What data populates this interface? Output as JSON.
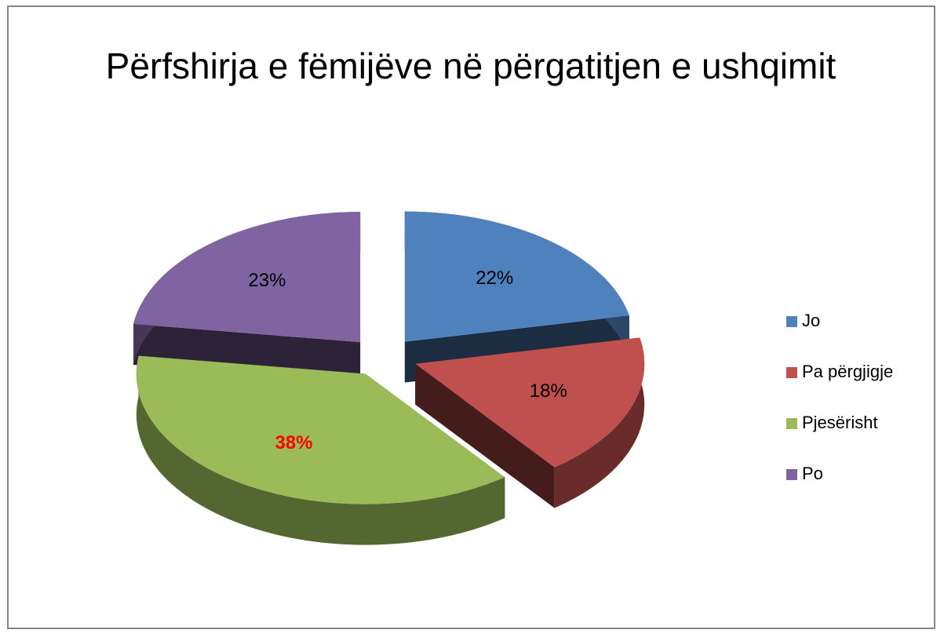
{
  "chart_data": {
    "type": "pie",
    "title": "Përfshirja e fëmijëve në përgatitjen e ushqimit",
    "categories": [
      "Jo",
      "Pa përgjigje",
      "Pjesërisht",
      "Po"
    ],
    "values": [
      22,
      18,
      38,
      23
    ],
    "value_labels": [
      "22%",
      "18%",
      "38%",
      "23%"
    ],
    "colors": [
      "#4f81bd",
      "#c0504d",
      "#9bbb59",
      "#8064a2"
    ],
    "label_colors": [
      "#000000",
      "#000000",
      "#ff0000",
      "#000000"
    ],
    "label_bold": [
      false,
      false,
      true,
      false
    ],
    "legend": "right"
  }
}
